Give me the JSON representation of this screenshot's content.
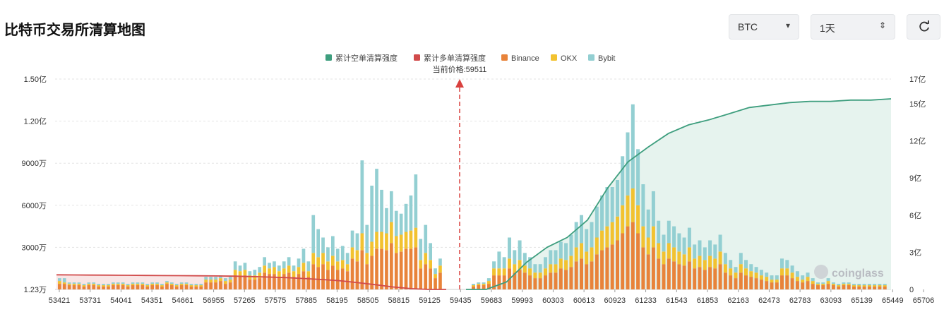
{
  "title": "比特币交易所清算地图",
  "controls": {
    "coin": "BTC",
    "range": "1天",
    "icons": {
      "dropdown": "caret-down-icon",
      "stepper": "updown-chevron-icon",
      "refresh": "refresh-icon"
    }
  },
  "watermark": "coinglass",
  "chart_data": {
    "type": "bar",
    "legend": [
      "累计空单清算强度",
      "累计多单清算强度",
      "Binance",
      "OKX",
      "Bybit"
    ],
    "legend_position": "top-center",
    "colors": {
      "short_cum": "#3e9e7e",
      "long_cum": "#d14b4b",
      "Binance": "#e8833a",
      "OKX": "#f2c230",
      "Bybit": "#93cfd2",
      "short_fill": "#e6f3ee",
      "long_fill": "#f9e5e5",
      "price_line": "#d9413f"
    },
    "current_price_label": "当前价格:59511",
    "current_price": 59511,
    "x_tick_labels": [
      "53421",
      "53731",
      "54041",
      "54351",
      "54661",
      "56955",
      "57265",
      "57575",
      "57885",
      "58195",
      "58505",
      "58815",
      "59125",
      "59435",
      "59683",
      "59993",
      "60303",
      "60613",
      "60923",
      "61233",
      "61543",
      "61853",
      "62163",
      "62473",
      "62783",
      "63093",
      "65139",
      "65449",
      "65706"
    ],
    "y_left_tick_labels": [
      "1.23万",
      "3000万",
      "6000万",
      "9000万",
      "1.20亿",
      "1.50亿"
    ],
    "y_left_tick_values": [
      12300,
      30000000,
      60000000,
      90000000,
      120000000,
      150000000
    ],
    "y_left_range": [
      0,
      150000000
    ],
    "y_right_tick_labels": [
      "0",
      "3亿",
      "6亿",
      "9亿",
      "12亿",
      "15亿",
      "17亿"
    ],
    "y_right_tick_values": [
      0,
      300000000,
      600000000,
      900000000,
      1200000000,
      1500000000,
      1700000000
    ],
    "y_right_range": [
      0,
      1700000000
    ],
    "grid": true,
    "bar_series_left": [
      {
        "name": "Binance",
        "values": [
          4,
          4,
          3,
          3,
          3,
          2,
          3,
          3,
          2,
          2,
          2,
          3,
          3,
          3,
          2,
          3,
          3,
          3,
          2,
          3,
          3,
          2,
          4,
          3,
          2,
          3,
          3,
          2,
          2,
          2,
          5,
          5,
          5,
          6,
          4,
          5,
          10,
          9,
          10,
          7,
          7,
          8,
          12,
          11,
          11,
          9,
          11,
          12,
          9,
          11,
          13,
          9,
          18,
          16,
          18,
          14,
          17,
          14,
          15,
          13,
          22,
          20,
          28,
          18,
          24,
          29,
          29,
          28,
          33,
          26,
          27,
          29,
          29,
          30,
          15,
          18,
          15,
          8,
          12
        ]
      },
      {
        "name": "OKX",
        "values": [
          2,
          1,
          1,
          1,
          1,
          1,
          1,
          1,
          1,
          1,
          1,
          1,
          1,
          1,
          1,
          1,
          1,
          1,
          1,
          1,
          1,
          1,
          1,
          1,
          1,
          1,
          1,
          1,
          1,
          1,
          2,
          2,
          2,
          2,
          2,
          2,
          4,
          4,
          4,
          3,
          3,
          4,
          5,
          4,
          5,
          4,
          4,
          5,
          4,
          5,
          6,
          4,
          8,
          7,
          8,
          6,
          7,
          6,
          6,
          5,
          8,
          8,
          12,
          8,
          10,
          12,
          12,
          12,
          15,
          12,
          12,
          12,
          13,
          14,
          6,
          8,
          6,
          3,
          5
        ]
      },
      {
        "name": "Bybit",
        "values": [
          2,
          3,
          1,
          1,
          1,
          1,
          1,
          1,
          1,
          1,
          1,
          1,
          1,
          1,
          1,
          1,
          1,
          1,
          1,
          1,
          1,
          1,
          1,
          1,
          1,
          1,
          1,
          1,
          1,
          1,
          2,
          2,
          2,
          2,
          2,
          2,
          6,
          4,
          5,
          3,
          4,
          4,
          6,
          4,
          4,
          4,
          5,
          6,
          4,
          6,
          10,
          7,
          27,
          20,
          11,
          10,
          14,
          9,
          10,
          8,
          12,
          12,
          52,
          20,
          40,
          45,
          30,
          18,
          22,
          18,
          15,
          20,
          25,
          38,
          15,
          20,
          12,
          4,
          5
        ]
      }
    ],
    "bar_series_right": [
      {
        "name": "Binance",
        "values": [
          2,
          3,
          3,
          4,
          10,
          10,
          10,
          15,
          12,
          14,
          12,
          10,
          8,
          8,
          10,
          12,
          12,
          15,
          14,
          16,
          20,
          22,
          18,
          20,
          25,
          28,
          30,
          32,
          35,
          40,
          45,
          48,
          40,
          30,
          25,
          30,
          22,
          18,
          22,
          20,
          18,
          17,
          20,
          15,
          16,
          14,
          16,
          15,
          18,
          12,
          10,
          8,
          12,
          10,
          9,
          8,
          7,
          6,
          5,
          5,
          10,
          10,
          8,
          6,
          5,
          6,
          4,
          3,
          3,
          4,
          3,
          2,
          3,
          3,
          2,
          2,
          2,
          2,
          2,
          2,
          2
        ]
      },
      {
        "name": "OKX",
        "values": [
          1,
          1,
          1,
          2,
          5,
          5,
          5,
          7,
          6,
          7,
          5,
          5,
          4,
          4,
          5,
          6,
          6,
          7,
          7,
          8,
          10,
          11,
          9,
          10,
          12,
          14,
          15,
          16,
          17,
          20,
          22,
          24,
          20,
          15,
          12,
          15,
          11,
          9,
          11,
          10,
          9,
          8,
          10,
          7,
          8,
          7,
          8,
          7,
          9,
          6,
          5,
          4,
          6,
          5,
          4,
          4,
          3,
          3,
          2,
          2,
          5,
          5,
          4,
          3,
          2,
          3,
          2,
          1,
          1,
          2,
          1,
          1,
          1,
          1,
          1,
          1,
          1,
          1,
          1,
          1,
          1
        ]
      },
      {
        "name": "Bybit",
        "values": [
          1,
          1,
          1,
          2,
          5,
          12,
          8,
          15,
          10,
          14,
          9,
          8,
          6,
          6,
          8,
          10,
          10,
          12,
          12,
          15,
          18,
          20,
          16,
          18,
          22,
          25,
          28,
          25,
          26,
          35,
          45,
          60,
          40,
          30,
          20,
          25,
          16,
          12,
          16,
          15,
          13,
          12,
          14,
          10,
          11,
          9,
          11,
          10,
          12,
          8,
          6,
          4,
          8,
          6,
          5,
          4,
          4,
          3,
          3,
          3,
          7,
          6,
          5,
          4,
          3,
          3,
          2,
          1,
          1,
          2,
          1,
          1,
          1,
          1,
          1,
          1,
          1,
          1,
          1,
          1,
          1
        ]
      }
    ],
    "long_cumulative_yi": [
      1.18,
      1.17,
      1.16,
      1.15,
      1.14,
      1.13,
      1.12,
      1.11,
      1.1,
      1.09,
      1.07,
      1.04,
      1.0,
      0.95,
      0.88,
      0.8,
      0.7,
      0.55,
      0.38,
      0.2,
      0.06,
      0.0,
      0.0
    ],
    "short_cumulative_yi": [
      0.0,
      0.0,
      0.6,
      2.2,
      3.4,
      4.2,
      5.6,
      8.2,
      10.3,
      11.5,
      12.6,
      13.3,
      13.7,
      14.2,
      14.7,
      14.9,
      15.1,
      15.2,
      15.2,
      15.3,
      15.3,
      15.4
    ]
  }
}
